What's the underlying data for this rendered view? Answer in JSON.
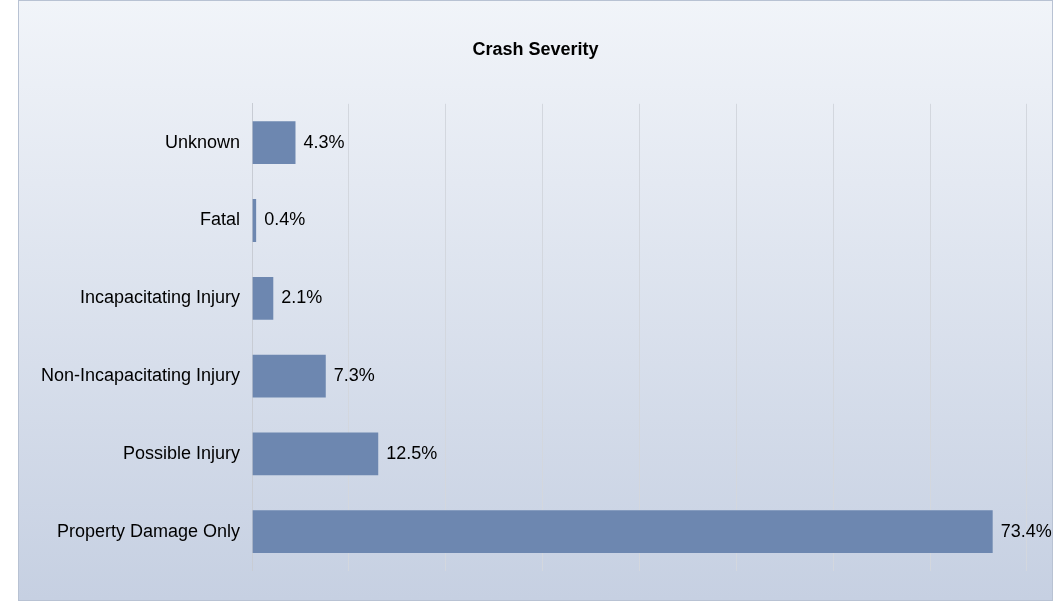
{
  "chart_data": {
    "type": "bar",
    "orientation": "horizontal",
    "title": "Crash Severity",
    "categories": [
      "Unknown",
      "Fatal",
      "Incapacitating Injury",
      "Non-Incapacitating Injury",
      "Possible Injury",
      "Property Damage Only"
    ],
    "values": [
      4.3,
      0.4,
      2.1,
      7.3,
      12.5,
      73.4
    ],
    "value_labels": [
      "4.3%",
      "0.4%",
      "2.1%",
      "7.3%",
      "12.5%",
      "73.4%"
    ],
    "color": "#6d87b0",
    "xlim": [
      0,
      77
    ],
    "xticks": [
      {
        "value": 0,
        "label": null
      },
      {
        "value": 9.6,
        "label": null
      },
      {
        "value": 19.2,
        "label": null
      },
      {
        "value": 28.8,
        "label": null
      },
      {
        "value": 38.4,
        "label": null
      },
      {
        "value": 48,
        "label": null
      },
      {
        "value": 57.6,
        "label": null
      },
      {
        "value": 67.2,
        "label": null
      },
      {
        "value": 76.8,
        "label": null
      }
    ],
    "grid": "x",
    "legend": false
  }
}
